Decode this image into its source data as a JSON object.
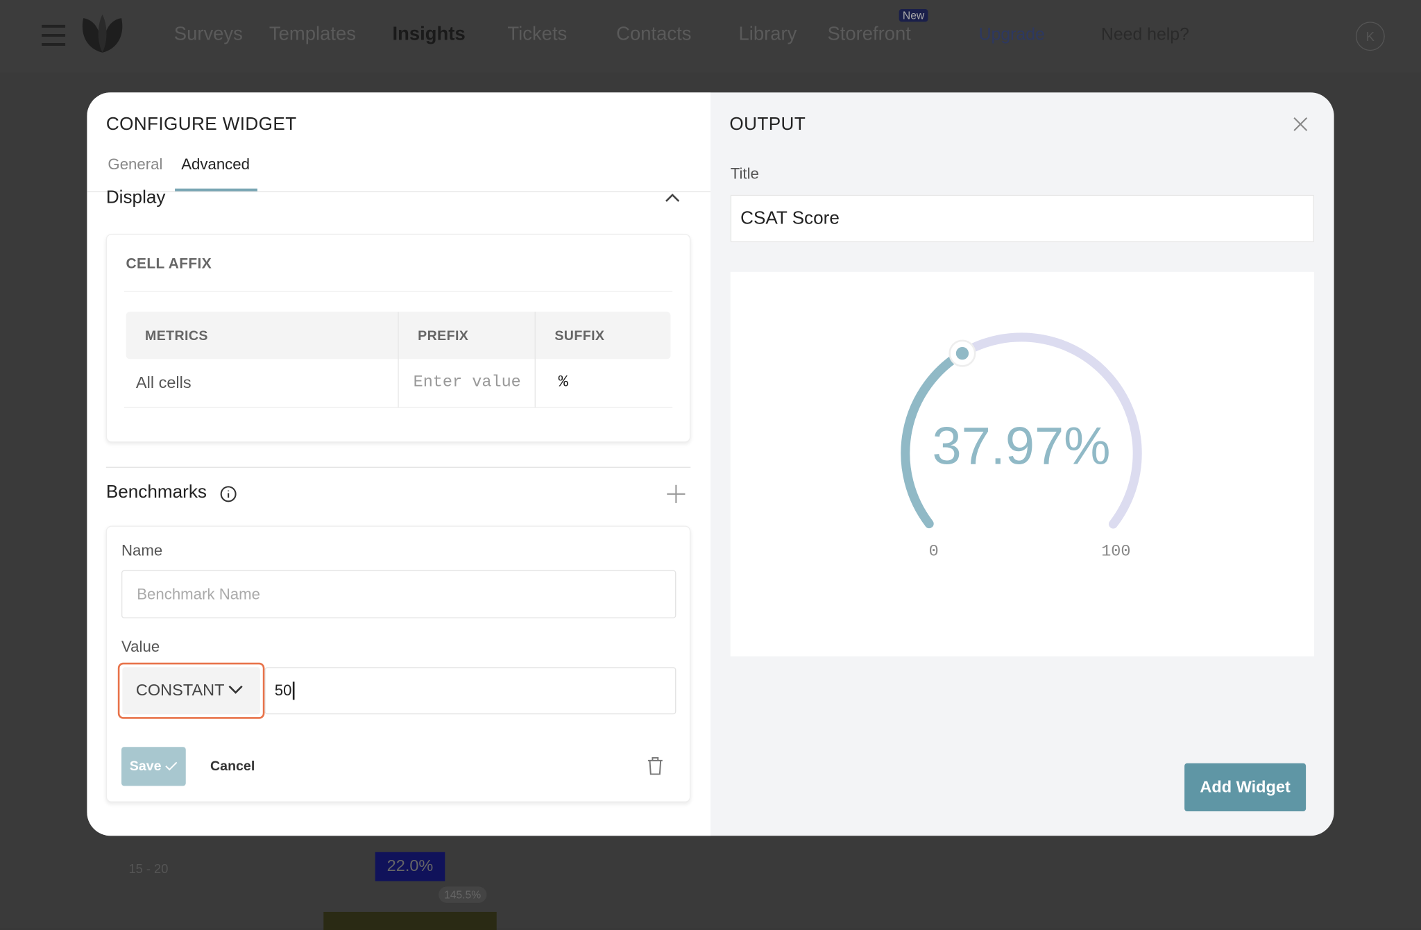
{
  "nav": {
    "items": [
      "Surveys",
      "Templates",
      "Insights",
      "Tickets",
      "Contacts",
      "Library",
      "Storefront"
    ],
    "badge": "New",
    "upgrade": "Upgrade",
    "help": "Need help?",
    "avatar": "K"
  },
  "background": {
    "row_label": "15 - 20",
    "bar_label": "22.0%",
    "change_label": "145.5%"
  },
  "modal": {
    "title": "CONFIGURE WIDGET",
    "tabs": [
      "General",
      "Advanced"
    ],
    "display": {
      "heading": "Display",
      "section": "CELL AFFIX",
      "table": {
        "headers": [
          "METRICS",
          "PREFIX",
          "SUFFIX"
        ],
        "rows": [
          [
            "All cells",
            "Enter value",
            "%"
          ]
        ]
      }
    },
    "benchmarks": {
      "heading": "Benchmarks",
      "name_label": "Name",
      "name_placeholder": "Benchmark Name",
      "value_label": "Value",
      "value_type": "CONSTANT",
      "value": "50",
      "save": "Save",
      "cancel": "Cancel"
    }
  },
  "output": {
    "heading": "OUTPUT",
    "title_label": "Title",
    "title_value": "CSAT Score",
    "gauge": {
      "value": 37.97,
      "value_label": "37.97%",
      "min": 0,
      "max": 100
    },
    "add_button": "Add Widget"
  }
}
